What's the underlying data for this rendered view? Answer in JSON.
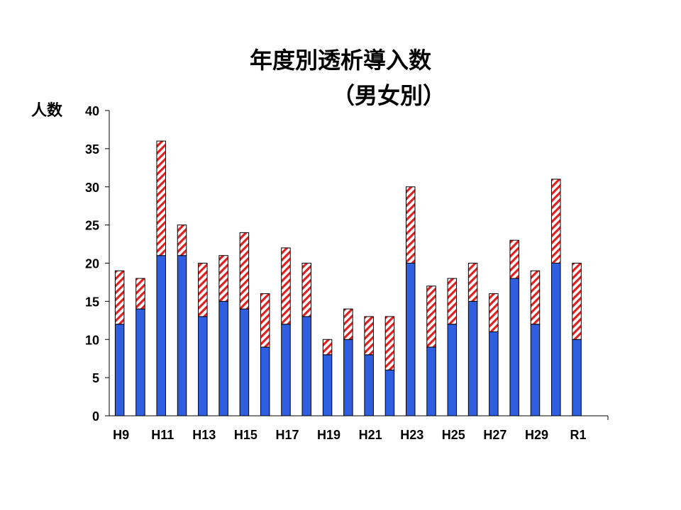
{
  "chart_data": {
    "type": "bar",
    "stacked": true,
    "title": "年度別透析導入数",
    "subtitle": "（男女別）",
    "ylabel": "人数",
    "xlabel": "",
    "ylim": [
      0,
      40
    ],
    "yticks": [
      0,
      5,
      10,
      15,
      20,
      25,
      30,
      35,
      40
    ],
    "categories": [
      "H9",
      "H10",
      "H11",
      "H12",
      "H13",
      "H14",
      "H15",
      "H16",
      "H17",
      "H18",
      "H19",
      "H20",
      "H21",
      "H22",
      "H23",
      "H24",
      "H25",
      "H26",
      "H27",
      "H28",
      "H29",
      "H30",
      "R1"
    ],
    "x_tick_labels": [
      "H9",
      "",
      "H11",
      "",
      "H13",
      "",
      "H15",
      "",
      "H17",
      "",
      "H19",
      "",
      "H21",
      "",
      "H23",
      "",
      "H25",
      "",
      "H27",
      "",
      "H29",
      "",
      "R1"
    ],
    "series": [
      {
        "values": [
          12,
          14,
          21,
          21,
          13,
          15,
          14,
          9,
          12,
          13,
          8,
          10,
          8,
          6,
          20,
          9,
          12,
          15,
          11,
          18,
          12,
          20,
          10
        ],
        "color": "#2f5fe0",
        "pattern": "solid"
      },
      {
        "values": [
          7,
          4,
          15,
          4,
          7,
          6,
          10,
          7,
          10,
          7,
          2,
          4,
          5,
          7,
          10,
          8,
          6,
          5,
          5,
          5,
          7,
          11,
          10
        ],
        "color": "#e02020",
        "pattern": "diagonal-hatch"
      }
    ],
    "grid": false,
    "legend": "none"
  }
}
